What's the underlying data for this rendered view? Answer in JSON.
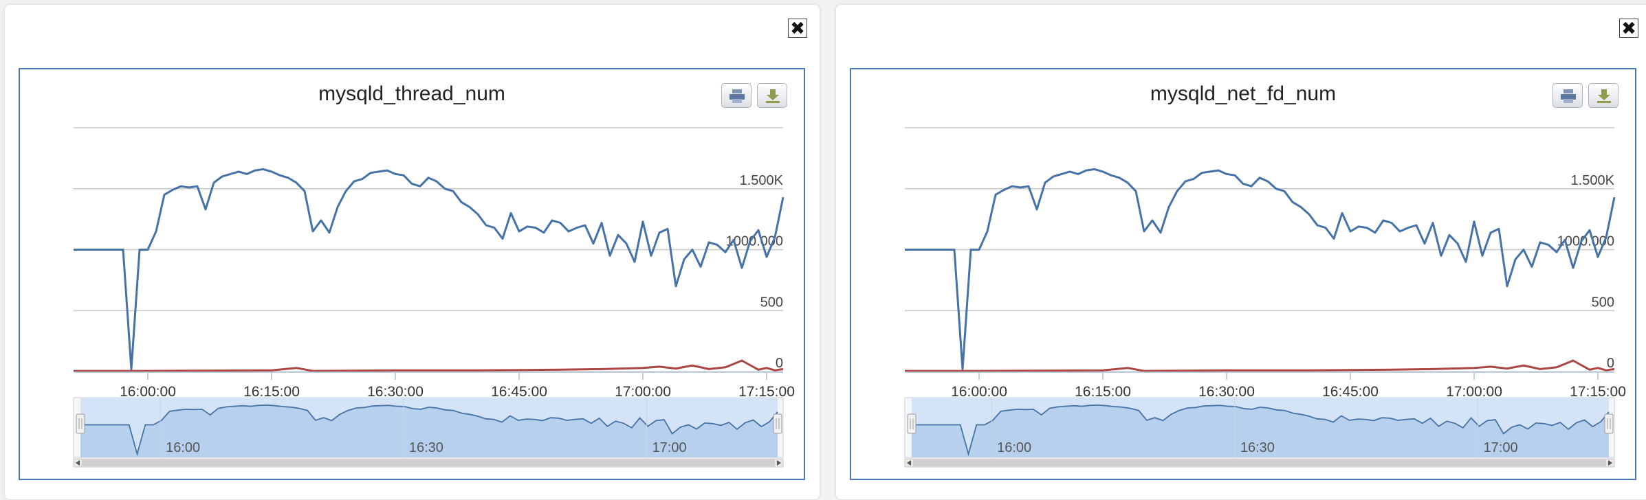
{
  "panels": [
    {
      "close_label": "✖",
      "chart_data": {
        "type": "line",
        "title": "mysqld_thread_num",
        "ylim": [
          0,
          2000
        ],
        "y_ticks": [
          {
            "value": 0,
            "label": "0"
          },
          {
            "value": 500,
            "label": "500"
          },
          {
            "value": 1000,
            "label": "1000.000"
          },
          {
            "value": 1500,
            "label": "1.500K"
          },
          {
            "value": 2000,
            "label": ""
          }
        ],
        "xlim": [
          945,
          1221
        ],
        "x_ticks": [
          {
            "value": 960,
            "label": "16:00:00"
          },
          {
            "value": 975,
            "label": "16:15:00"
          },
          {
            "value": 990,
            "label": "16:30:00"
          },
          {
            "value": 1005,
            "label": "16:45:00"
          },
          {
            "value": 1020,
            "label": "17:00:00"
          },
          {
            "value": 1035,
            "label": "17:15:00"
          }
        ],
        "navigator_ticks": [
          {
            "value": 960,
            "label": "16:00"
          },
          {
            "value": 990,
            "label": "16:30"
          },
          {
            "value": 1020,
            "label": "17:00"
          }
        ],
        "series": [
          {
            "color": "#4572a7",
            "x": [
              951,
              952,
              953,
              954,
              955,
              956,
              957,
              958,
              959,
              960,
              961,
              962,
              963,
              964,
              965,
              966,
              967,
              968,
              969,
              970,
              971,
              972,
              973,
              974,
              975,
              976,
              977,
              978,
              979,
              980,
              981,
              982,
              983,
              984,
              985,
              986,
              987,
              988,
              989,
              990,
              991,
              992,
              993,
              994,
              995,
              996,
              997,
              998,
              999,
              1000,
              1001,
              1002,
              1003,
              1004,
              1005,
              1006,
              1007,
              1008,
              1009,
              1010,
              1011,
              1012,
              1013,
              1014,
              1015,
              1016,
              1017,
              1018,
              1019,
              1020,
              1021,
              1022,
              1023,
              1024,
              1025,
              1026,
              1027,
              1028,
              1029,
              1030,
              1031,
              1032,
              1033,
              1034,
              1035,
              1036,
              1037
            ],
            "y": [
              1000,
              1000,
              1000,
              1000,
              1000,
              1000,
              1000,
              20,
              1000,
              1000,
              1150,
              1450,
              1490,
              1520,
              1510,
              1520,
              1330,
              1550,
              1600,
              1620,
              1640,
              1620,
              1650,
              1660,
              1640,
              1610,
              1590,
              1550,
              1480,
              1150,
              1240,
              1140,
              1350,
              1480,
              1560,
              1580,
              1630,
              1640,
              1650,
              1620,
              1610,
              1540,
              1520,
              1590,
              1560,
              1500,
              1480,
              1390,
              1350,
              1290,
              1200,
              1180,
              1090,
              1300,
              1150,
              1190,
              1180,
              1140,
              1240,
              1220,
              1150,
              1180,
              1200,
              1050,
              1220,
              950,
              1120,
              1050,
              900,
              1230,
              950,
              1140,
              1170,
              700,
              920,
              1000,
              860,
              1060,
              1040,
              980,
              1080,
              850,
              1070,
              1160,
              940,
              1100,
              1430
            ]
          },
          {
            "color": "#aa4643",
            "x": [
              951,
              960,
              975,
              978,
              980,
              990,
              1000,
              1010,
              1015,
              1020,
              1022,
              1024,
              1026,
              1028,
              1030,
              1032,
              1034,
              1035,
              1036,
              1037
            ],
            "y": [
              5,
              5,
              10,
              30,
              5,
              10,
              10,
              15,
              20,
              30,
              40,
              25,
              50,
              20,
              35,
              90,
              15,
              30,
              10,
              20
            ]
          }
        ]
      }
    },
    {
      "close_label": "✖",
      "chart_data": {
        "type": "line",
        "title": "mysqld_net_fd_num",
        "ylim": [
          0,
          2000
        ],
        "y_ticks": [
          {
            "value": 0,
            "label": "0"
          },
          {
            "value": 500,
            "label": "500"
          },
          {
            "value": 1000,
            "label": "1000.000"
          },
          {
            "value": 1500,
            "label": "1.500K"
          },
          {
            "value": 2000,
            "label": ""
          }
        ],
        "xlim": [
          945,
          1221
        ],
        "x_ticks": [
          {
            "value": 960,
            "label": "16:00:00"
          },
          {
            "value": 975,
            "label": "16:15:00"
          },
          {
            "value": 990,
            "label": "16:30:00"
          },
          {
            "value": 1005,
            "label": "16:45:00"
          },
          {
            "value": 1020,
            "label": "17:00:00"
          },
          {
            "value": 1035,
            "label": "17:15:00"
          }
        ],
        "navigator_ticks": [
          {
            "value": 960,
            "label": "16:00"
          },
          {
            "value": 990,
            "label": "16:30"
          },
          {
            "value": 1020,
            "label": "17:00"
          }
        ],
        "series": [
          {
            "color": "#4572a7",
            "x": [
              951,
              952,
              953,
              954,
              955,
              956,
              957,
              958,
              959,
              960,
              961,
              962,
              963,
              964,
              965,
              966,
              967,
              968,
              969,
              970,
              971,
              972,
              973,
              974,
              975,
              976,
              977,
              978,
              979,
              980,
              981,
              982,
              983,
              984,
              985,
              986,
              987,
              988,
              989,
              990,
              991,
              992,
              993,
              994,
              995,
              996,
              997,
              998,
              999,
              1000,
              1001,
              1002,
              1003,
              1004,
              1005,
              1006,
              1007,
              1008,
              1009,
              1010,
              1011,
              1012,
              1013,
              1014,
              1015,
              1016,
              1017,
              1018,
              1019,
              1020,
              1021,
              1022,
              1023,
              1024,
              1025,
              1026,
              1027,
              1028,
              1029,
              1030,
              1031,
              1032,
              1033,
              1034,
              1035,
              1036,
              1037
            ],
            "y": [
              1000,
              1000,
              1000,
              1000,
              1000,
              1000,
              1000,
              20,
              1000,
              1000,
              1150,
              1450,
              1490,
              1520,
              1510,
              1520,
              1330,
              1550,
              1600,
              1620,
              1640,
              1620,
              1650,
              1660,
              1640,
              1610,
              1590,
              1550,
              1480,
              1150,
              1240,
              1140,
              1350,
              1480,
              1560,
              1580,
              1630,
              1640,
              1650,
              1620,
              1610,
              1540,
              1520,
              1590,
              1560,
              1500,
              1480,
              1390,
              1350,
              1290,
              1200,
              1180,
              1090,
              1300,
              1150,
              1190,
              1180,
              1140,
              1240,
              1220,
              1150,
              1180,
              1200,
              1050,
              1220,
              950,
              1120,
              1050,
              900,
              1230,
              950,
              1140,
              1170,
              700,
              920,
              1000,
              860,
              1060,
              1040,
              980,
              1080,
              850,
              1070,
              1160,
              940,
              1100,
              1430
            ]
          },
          {
            "color": "#aa4643",
            "x": [
              951,
              960,
              975,
              978,
              980,
              990,
              1000,
              1010,
              1015,
              1020,
              1022,
              1024,
              1026,
              1028,
              1030,
              1032,
              1034,
              1035,
              1036,
              1037
            ],
            "y": [
              5,
              5,
              10,
              30,
              5,
              10,
              10,
              15,
              20,
              30,
              40,
              25,
              50,
              20,
              35,
              90,
              15,
              30,
              10,
              20
            ]
          }
        ]
      }
    }
  ]
}
